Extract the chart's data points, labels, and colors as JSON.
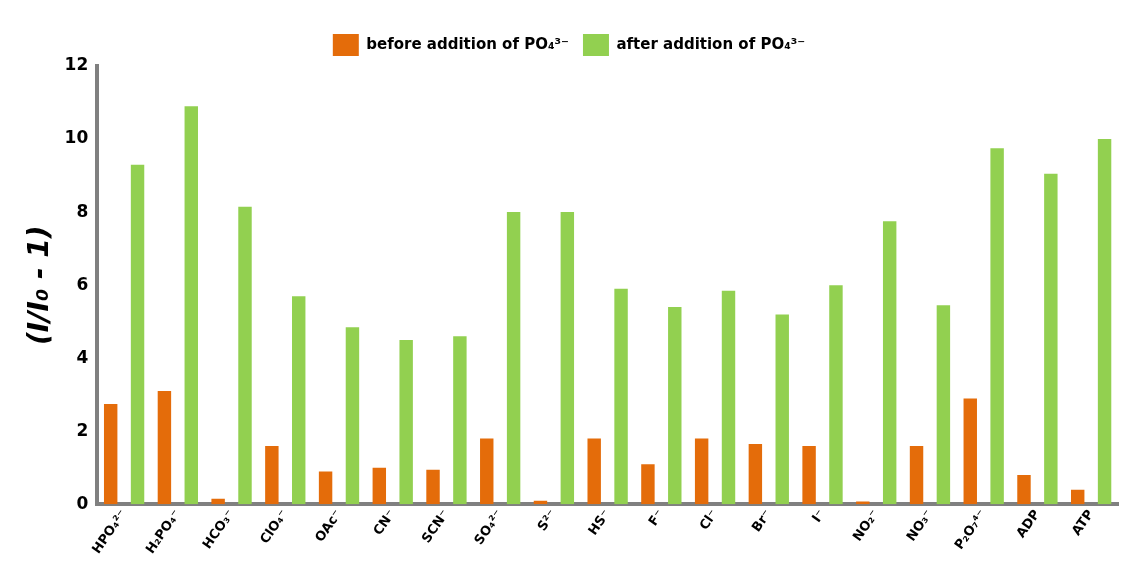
{
  "chart_data": {
    "type": "bar",
    "ylabel": "(I/I₀ - 1)",
    "categories": [
      "HPO₄²⁻",
      "H₂PO₄⁻",
      "HCO₃⁻",
      "ClO₄⁻",
      "OAc⁻",
      "CN⁻",
      "SCN⁻",
      "SO₄²⁻",
      "S²⁻",
      "HS⁻",
      "F⁻",
      "Cl⁻",
      "Br⁻",
      "I⁻",
      "NO₂⁻",
      "NO₃⁻",
      "P₂O₇⁴⁻",
      "ADP",
      "ATP"
    ],
    "series": [
      {
        "name": "before addition of PO₄³⁻",
        "color": "#e46c0a",
        "values": [
          2.75,
          3.1,
          0.15,
          1.6,
          0.9,
          1.0,
          0.95,
          1.8,
          0.1,
          1.8,
          1.1,
          1.8,
          1.65,
          1.6,
          0.08,
          1.6,
          2.9,
          0.8,
          0.4
        ]
      },
      {
        "name": "after addition of PO₄³⁻",
        "color": "#92d050",
        "values": [
          9.3,
          10.9,
          8.15,
          5.7,
          4.85,
          4.5,
          4.6,
          8.0,
          8.0,
          5.9,
          5.4,
          5.85,
          5.2,
          6.0,
          7.75,
          5.45,
          9.75,
          9.05,
          10.0
        ]
      }
    ],
    "ylim": [
      0,
      12
    ],
    "yticks": [
      0,
      2,
      4,
      6,
      8,
      10,
      12
    ],
    "grid": false,
    "legend": "top"
  }
}
